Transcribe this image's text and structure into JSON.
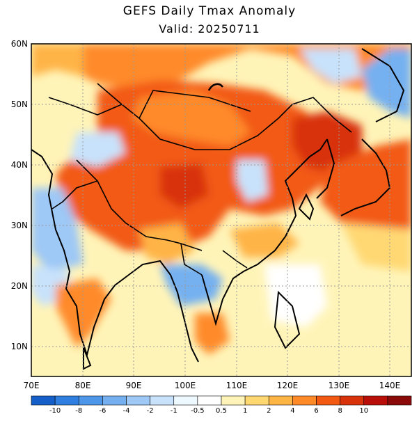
{
  "header": {
    "title": "GEFS Daily Tmax Anomaly",
    "subtitle": "Valid: 20250711"
  },
  "map": {
    "lat_labels": [
      "60N",
      "50N",
      "40N",
      "30N",
      "20N",
      "10N"
    ],
    "lon_labels": [
      "70E",
      "80E",
      "90E",
      "100E",
      "110E",
      "120E",
      "130E",
      "140E"
    ]
  },
  "colorbar": {
    "colors": [
      "#1560c8",
      "#2f7ee0",
      "#4e97e8",
      "#74b0f0",
      "#9ec8f6",
      "#c8e2fb",
      "#eef8ff",
      "#ffffff",
      "#fff4b8",
      "#ffd873",
      "#ffb446",
      "#ff8a2a",
      "#f25a14",
      "#d8330c",
      "#b81008",
      "#8a0a0a"
    ],
    "labels": [
      "-10",
      "-8",
      "-6",
      "-4",
      "-2",
      "-1",
      "-0.5",
      "0.5",
      "1",
      "2",
      "4",
      "6",
      "8",
      "10"
    ]
  },
  "colors": {
    "frame": "#000000",
    "grid": "#9a9a9a"
  }
}
